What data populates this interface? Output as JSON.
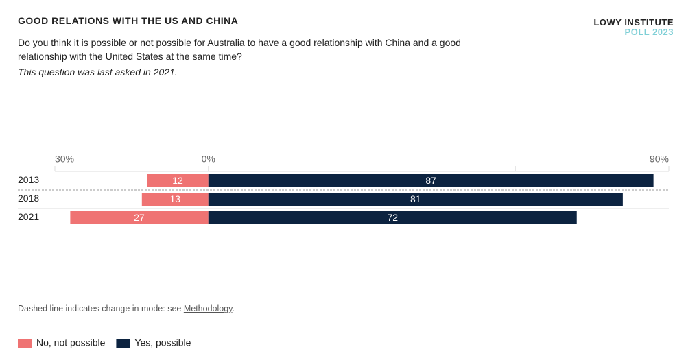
{
  "chart_data": {
    "type": "diverging-bar",
    "title": "GOOD RELATIONS WITH THE US AND CHINA",
    "subtitle": "Do you think it is possible or not possible for Australia to have a good relationship with China and a good relationship with the United States at the same time?",
    "annotation": "This question was last asked in 2021.",
    "brand": [
      "LOWY INSTITUTE",
      "POLL 2023"
    ],
    "note": [
      "Dashed line indicates change in mode: see ",
      "Methodology",
      "."
    ],
    "categories": [
      "2013",
      "2018",
      "2021"
    ],
    "series": [
      {
        "name": "No, not possible",
        "color": "#ef7373",
        "values": [
          -12,
          -13,
          -27
        ],
        "value_labels": [
          "12",
          "13",
          "27"
        ]
      },
      {
        "name": "Yes, possible",
        "color": "#0c2340",
        "values": [
          87,
          81,
          72
        ]
      }
    ],
    "xlim": [
      -30,
      90
    ],
    "xticks": [
      {
        "value": -30,
        "label": "30%"
      },
      {
        "value": 0,
        "label": "0%"
      },
      {
        "value": 30,
        "label": null
      },
      {
        "value": 60,
        "label": null
      },
      {
        "value": 90,
        "label": "90%"
      }
    ]
  }
}
